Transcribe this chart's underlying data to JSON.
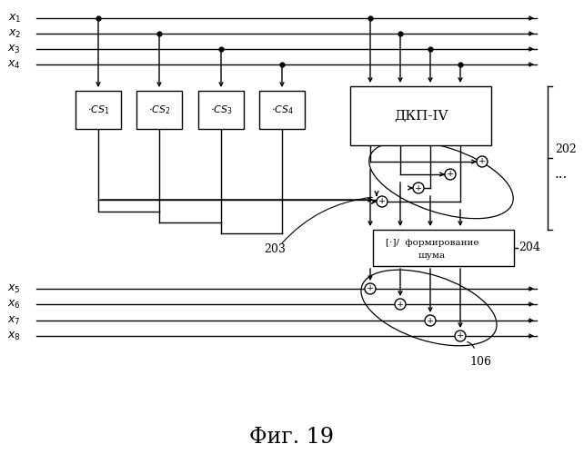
{
  "bg_color": "#ffffff",
  "title": "Фиг. 19",
  "title_fontsize": 17,
  "fig_width": 6.42,
  "fig_height": 5.0,
  "dpi": 100,
  "x_labels_top": [
    "$x_1$",
    "$x_2$",
    "$x_3$",
    "$x_4$"
  ],
  "x_labels_bot": [
    "$x_5$",
    "$x_6$",
    "$x_7$",
    "$x_8$"
  ],
  "cs_labels": [
    "$\\cdot CS_1$",
    "$\\cdot CS_2$",
    "$\\cdot CS_3$",
    "$\\cdot CS_4$"
  ],
  "dkp_label": "ДКП-IV",
  "ns_label1": "[·]/  формирование",
  "ns_label2": "шума",
  "label_202": "202",
  "label_203": "203",
  "label_204": "204",
  "label_106": "106"
}
